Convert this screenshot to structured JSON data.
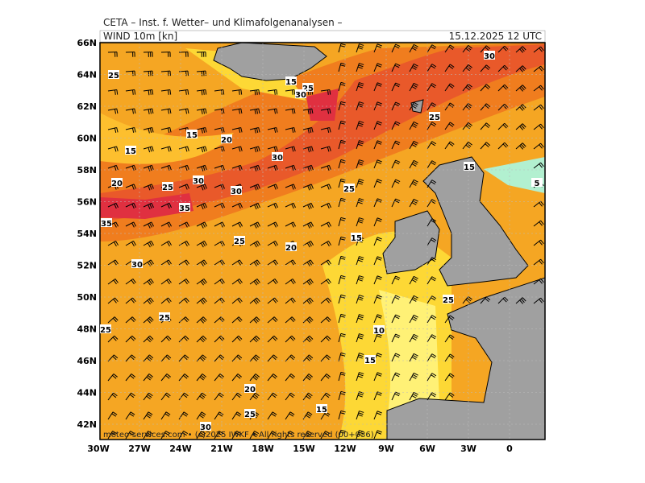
{
  "header": {
    "institute": "CETA – Inst. f. Wetter– und Klimafolgenanalysen –",
    "field": "WIND 10m [kn]",
    "valid": "15.12.2025 12 UTC"
  },
  "map": {
    "lat_labels": [
      "66N",
      "64N",
      "62N",
      "60N",
      "58N",
      "56N",
      "54N",
      "52N",
      "50N",
      "48N",
      "46N",
      "44N",
      "42N"
    ],
    "lon_labels": [
      "30W",
      "27W",
      "24W",
      "21W",
      "18W",
      "15W",
      "12W",
      "9W",
      "6W",
      "3W",
      "0"
    ],
    "contour_labels": [
      "30",
      "25",
      "15",
      "25",
      "30",
      "25",
      "15",
      "20",
      "15",
      "30",
      "15",
      "30",
      "20",
      "25",
      "5",
      "30",
      "25",
      "35",
      "35",
      "15",
      "25",
      "20",
      "30",
      "25",
      "25",
      "25",
      "10",
      "15",
      "20",
      "15",
      "25",
      "30"
    ]
  },
  "footer": "meteo-services.com • (c)2025 IWKF • All rights reserved (00+036)"
}
